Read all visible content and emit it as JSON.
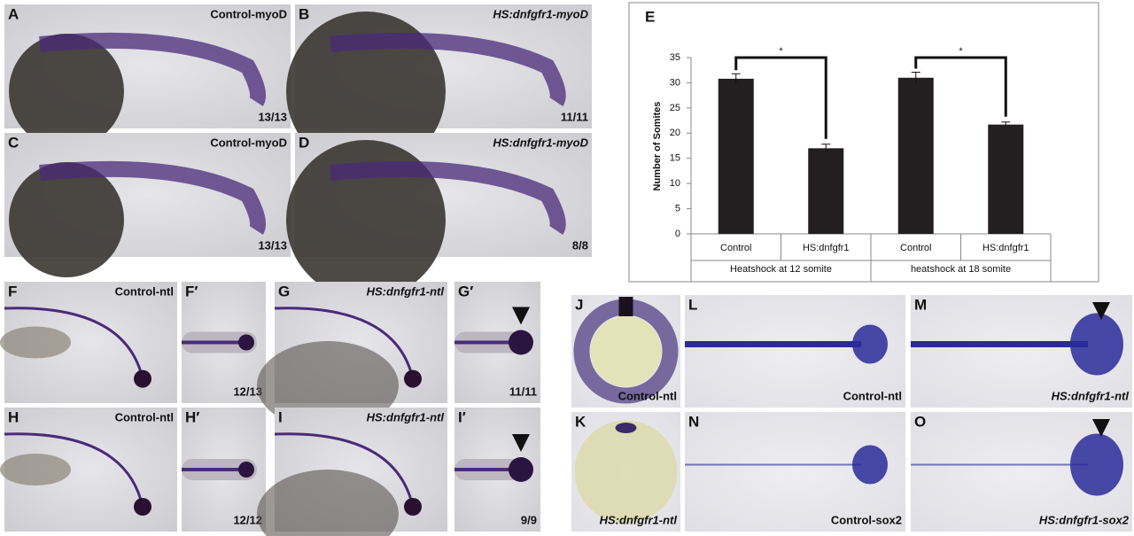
{
  "panels": [
    {
      "label": "A",
      "caption": "Control-myoD",
      "count": "13/13"
    },
    {
      "label": "B",
      "caption": "HS:dnfgfr1-myoD",
      "count": "11/11"
    },
    {
      "label": "C",
      "caption": "Control-myoD",
      "count": "13/13"
    },
    {
      "label": "D",
      "caption": "HS:dnfgfr1-myoD",
      "count": "8/8"
    },
    {
      "label": "F",
      "caption": "Control-ntl"
    },
    {
      "label": "F′",
      "count": "12/13"
    },
    {
      "label": "G",
      "caption": "HS:dnfgfr1-ntl"
    },
    {
      "label": "G′",
      "count": "11/11"
    },
    {
      "label": "H",
      "caption": "Control-ntl"
    },
    {
      "label": "H′",
      "count": "12/12"
    },
    {
      "label": "I",
      "caption": "HS:dnfgfr1-ntl"
    },
    {
      "label": "I′",
      "count": "9/9"
    },
    {
      "label": "J",
      "caption": "Control-ntl"
    },
    {
      "label": "L",
      "caption": "Control-ntl"
    },
    {
      "label": "M",
      "caption": "HS:dnfgfr1-ntl"
    },
    {
      "label": "K",
      "caption": "HS:dnfgfr1-ntl"
    },
    {
      "label": "N",
      "caption": "Control-sox2"
    },
    {
      "label": "O",
      "caption": "HS:dnfgfr1-sox2"
    }
  ],
  "chart_data": {
    "type": "bar",
    "title": "E",
    "y_label": "Number of Somites",
    "categories": [
      "Control",
      "HS:dnfgfr1",
      "Control",
      "HS:dnfgfr1"
    ],
    "groups": [
      "Heatshock at 12 somite",
      "heatshock at 18 somite"
    ],
    "values": [
      30.8,
      17,
      31,
      21.7
    ],
    "errors": [
      1,
      0.8,
      1.1,
      0.5
    ],
    "color": "#231f20",
    "annotations": [
      "*",
      "*"
    ],
    "ylim": [
      0,
      35
    ],
    "yticks": [
      0,
      5,
      10,
      15,
      20,
      25,
      30,
      35
    ]
  }
}
